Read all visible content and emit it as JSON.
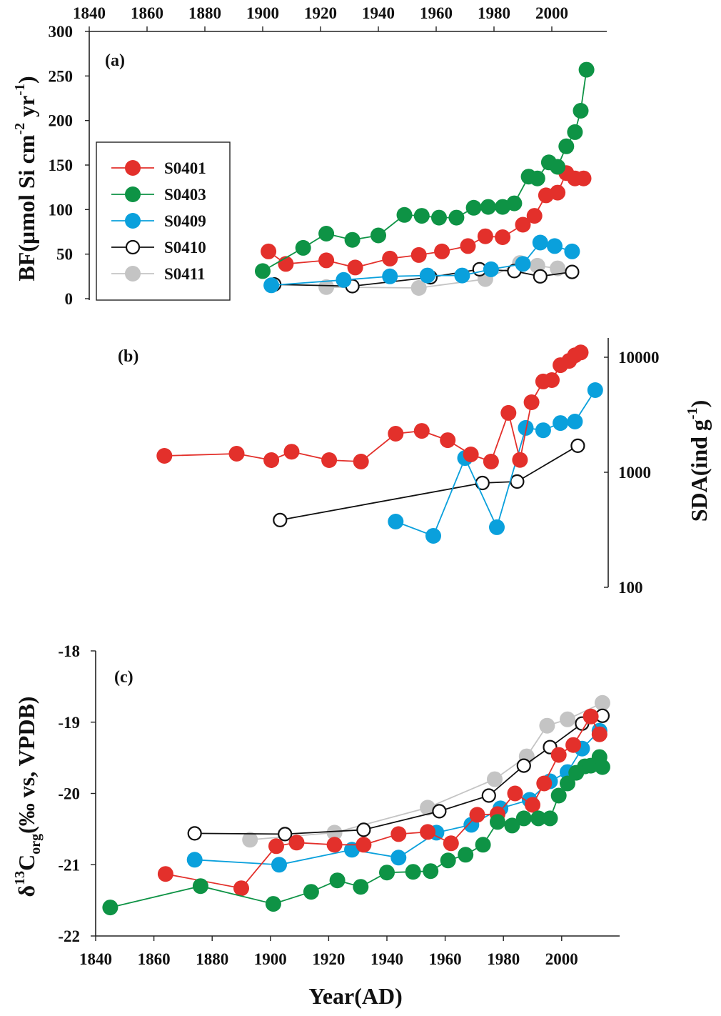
{
  "chart_data": [
    {
      "type": "line",
      "panel": "a",
      "panel_label": "(a)",
      "xlabel": "",
      "x_axis_position": "top",
      "xticks": [
        1840,
        1860,
        1880,
        1900,
        1920,
        1940,
        1960,
        1980,
        2000
      ],
      "xlim": [
        1840,
        2020
      ],
      "ylabel": "BF(µmol Si cm^-2 yr^-1)",
      "ylabel_parts": {
        "main": "BF(µmol Si cm",
        "sup1": "-2",
        "mid": " yr",
        "sup2": "-1",
        "end": ")"
      },
      "yscale": "linear",
      "ylim": [
        0,
        300
      ],
      "yticks": [
        0,
        50,
        100,
        150,
        200,
        250,
        300
      ],
      "legend": {
        "position": "left-middle",
        "entries": [
          "S0401",
          "S0403",
          "S0409",
          "S0410",
          "S0411"
        ]
      },
      "series": [
        {
          "name": "S0401",
          "color": "#e3302b",
          "marker": "filled",
          "x": [
            1902,
            1908,
            1922,
            1932,
            1944,
            1954,
            1962,
            1971,
            1977,
            1983,
            1990,
            1994,
            1998,
            2002,
            2005,
            2008,
            2011
          ],
          "y": [
            53,
            39,
            43,
            35,
            45,
            49,
            53,
            59,
            70,
            69,
            83,
            93,
            116,
            119,
            141,
            135,
            135
          ]
        },
        {
          "name": "S0403",
          "color": "#0e9345",
          "marker": "filled",
          "x": [
            1900,
            1914,
            1922,
            1931,
            1940,
            1949,
            1955,
            1961,
            1967,
            1973,
            1978,
            1983,
            1987,
            1992,
            1995,
            1999,
            2002,
            2005,
            2008,
            2010,
            2012
          ],
          "y": [
            31,
            57,
            73,
            66,
            71,
            94,
            93,
            91,
            91,
            102,
            103,
            103,
            107,
            137,
            135,
            153,
            148,
            171,
            187,
            211,
            257
          ]
        },
        {
          "name": "S0409",
          "color": "#0aa0dc",
          "marker": "filled",
          "x": [
            1903,
            1928,
            1944,
            1957,
            1969,
            1979,
            1990,
            1996,
            2001,
            2007
          ],
          "y": [
            15,
            21,
            25,
            26,
            26,
            33,
            39,
            63,
            59,
            53
          ]
        },
        {
          "name": "S0410",
          "color": "#111111",
          "marker": "open",
          "x": [
            1904,
            1931,
            1958,
            1975,
            1987,
            1996,
            2007
          ],
          "y": [
            16,
            14,
            24,
            33,
            31,
            25,
            30
          ]
        },
        {
          "name": "S0411",
          "color": "#c4c4c4",
          "marker": "filled",
          "x": [
            1922,
            1954,
            1977,
            1989,
            1995,
            2002
          ],
          "y": [
            13,
            12,
            22,
            40,
            37,
            34
          ]
        }
      ]
    },
    {
      "type": "line",
      "panel": "b",
      "panel_label": "(b)",
      "xlabel": "",
      "xlim": [
        1840,
        2020
      ],
      "ylabel": "SDA(ind g^-1)",
      "ylabel_parts": {
        "main": "SDA(ind g",
        "sup": "-1",
        "end": ")"
      },
      "y_axis_position": "right",
      "yscale": "log",
      "ylim": [
        100,
        15000
      ],
      "yticks": [
        100,
        1000,
        10000
      ],
      "series": [
        {
          "name": "S0401",
          "color": "#e3302b",
          "marker": "filled",
          "x": [
            1866,
            1891,
            1903,
            1910,
            1923,
            1934,
            1946,
            1955,
            1964,
            1972,
            1979,
            1985,
            1989,
            1993,
            1997,
            2000,
            2003,
            2006,
            2008,
            2010
          ],
          "y": [
            1390,
            1450,
            1275,
            1510,
            1275,
            1240,
            2165,
            2290,
            1900,
            1430,
            1240,
            3280,
            1280,
            4060,
            6160,
            6330,
            8530,
            9300,
            10400,
            11000
          ]
        },
        {
          "name": "S0409",
          "color": "#0aa0dc",
          "marker": "filled",
          "x": [
            1946,
            1959,
            1970,
            1981,
            1991,
            1997,
            2003,
            2008,
            2015
          ],
          "y": [
            373,
            280,
            1330,
            333,
            2430,
            2320,
            2680,
            2760,
            5180
          ]
        },
        {
          "name": "S0410",
          "color": "#111111",
          "marker": "open",
          "x": [
            1906,
            1976,
            1988,
            2009
          ],
          "y": [
            384,
            807,
            830,
            1700
          ]
        }
      ]
    },
    {
      "type": "line",
      "panel": "c",
      "panel_label": "(c)",
      "xlabel": "Year(AD)",
      "x_axis_position": "bottom",
      "xticks": [
        1840,
        1860,
        1880,
        1900,
        1920,
        1940,
        1960,
        1980,
        2000
      ],
      "xlim": [
        1840,
        2020
      ],
      "ylabel": "δ13Corg(‰ vs, VPDB)",
      "ylabel_parts": {
        "delta": "δ",
        "sup": "13",
        "main": "C",
        "sub": "org",
        "end": "(‰ vs, VPDB)"
      },
      "yscale": "linear",
      "ylim": [
        -22,
        -18
      ],
      "yticks": [
        -22,
        -21,
        -20,
        -19,
        -18
      ],
      "series": [
        {
          "name": "S0401",
          "color": "#e3302b",
          "marker": "filled",
          "x": [
            1864,
            1890,
            1902,
            1909,
            1922,
            1932,
            1944,
            1954,
            1962,
            1971,
            1978,
            1984,
            1990,
            1994,
            1999,
            2004,
            2010,
            2013
          ],
          "y": [
            -21.13,
            -21.33,
            -20.74,
            -20.69,
            -20.72,
            -20.72,
            -20.57,
            -20.54,
            -20.7,
            -20.3,
            -20.29,
            -20.0,
            -20.16,
            -19.86,
            -19.46,
            -19.32,
            -18.92,
            -19.17
          ]
        },
        {
          "name": "S0403",
          "color": "#0e9345",
          "marker": "filled",
          "x": [
            1845,
            1876,
            1901,
            1914,
            1923,
            1931,
            1940,
            1949,
            1955,
            1961,
            1967,
            1973,
            1978,
            1983,
            1987,
            1992,
            1996,
            1999,
            2002,
            2005,
            2008,
            2010,
            2013,
            2014
          ],
          "y": [
            -21.6,
            -21.3,
            -21.55,
            -21.38,
            -21.22,
            -21.31,
            -21.11,
            -21.1,
            -21.09,
            -20.94,
            -20.86,
            -20.72,
            -20.4,
            -20.45,
            -20.35,
            -20.35,
            -20.35,
            -20.03,
            -19.86,
            -19.71,
            -19.62,
            -19.61,
            -19.49,
            -19.63
          ]
        },
        {
          "name": "S0409",
          "color": "#0aa0dc",
          "marker": "filled",
          "x": [
            1874,
            1903,
            1928,
            1944,
            1957,
            1969,
            1979,
            1989,
            1996,
            2002,
            2007,
            2013
          ],
          "y": [
            -20.93,
            -21.0,
            -20.79,
            -20.9,
            -20.55,
            -20.44,
            -20.21,
            -20.09,
            -19.83,
            -19.7,
            -19.37,
            -19.12
          ]
        },
        {
          "name": "S0410",
          "color": "#111111",
          "marker": "open",
          "x": [
            1874,
            1905,
            1932,
            1958,
            1975,
            1987,
            1996,
            2007,
            2014
          ],
          "y": [
            -20.56,
            -20.57,
            -20.51,
            -20.25,
            -20.03,
            -19.61,
            -19.35,
            -19.02,
            -18.91
          ]
        },
        {
          "name": "S0411",
          "color": "#c4c4c4",
          "marker": "filled",
          "x": [
            1893,
            1922,
            1954,
            1977,
            1988,
            1995,
            2002,
            2014
          ],
          "y": [
            -20.65,
            -20.55,
            -20.2,
            -19.8,
            -19.48,
            -19.05,
            -18.96,
            -18.73
          ]
        }
      ]
    }
  ]
}
